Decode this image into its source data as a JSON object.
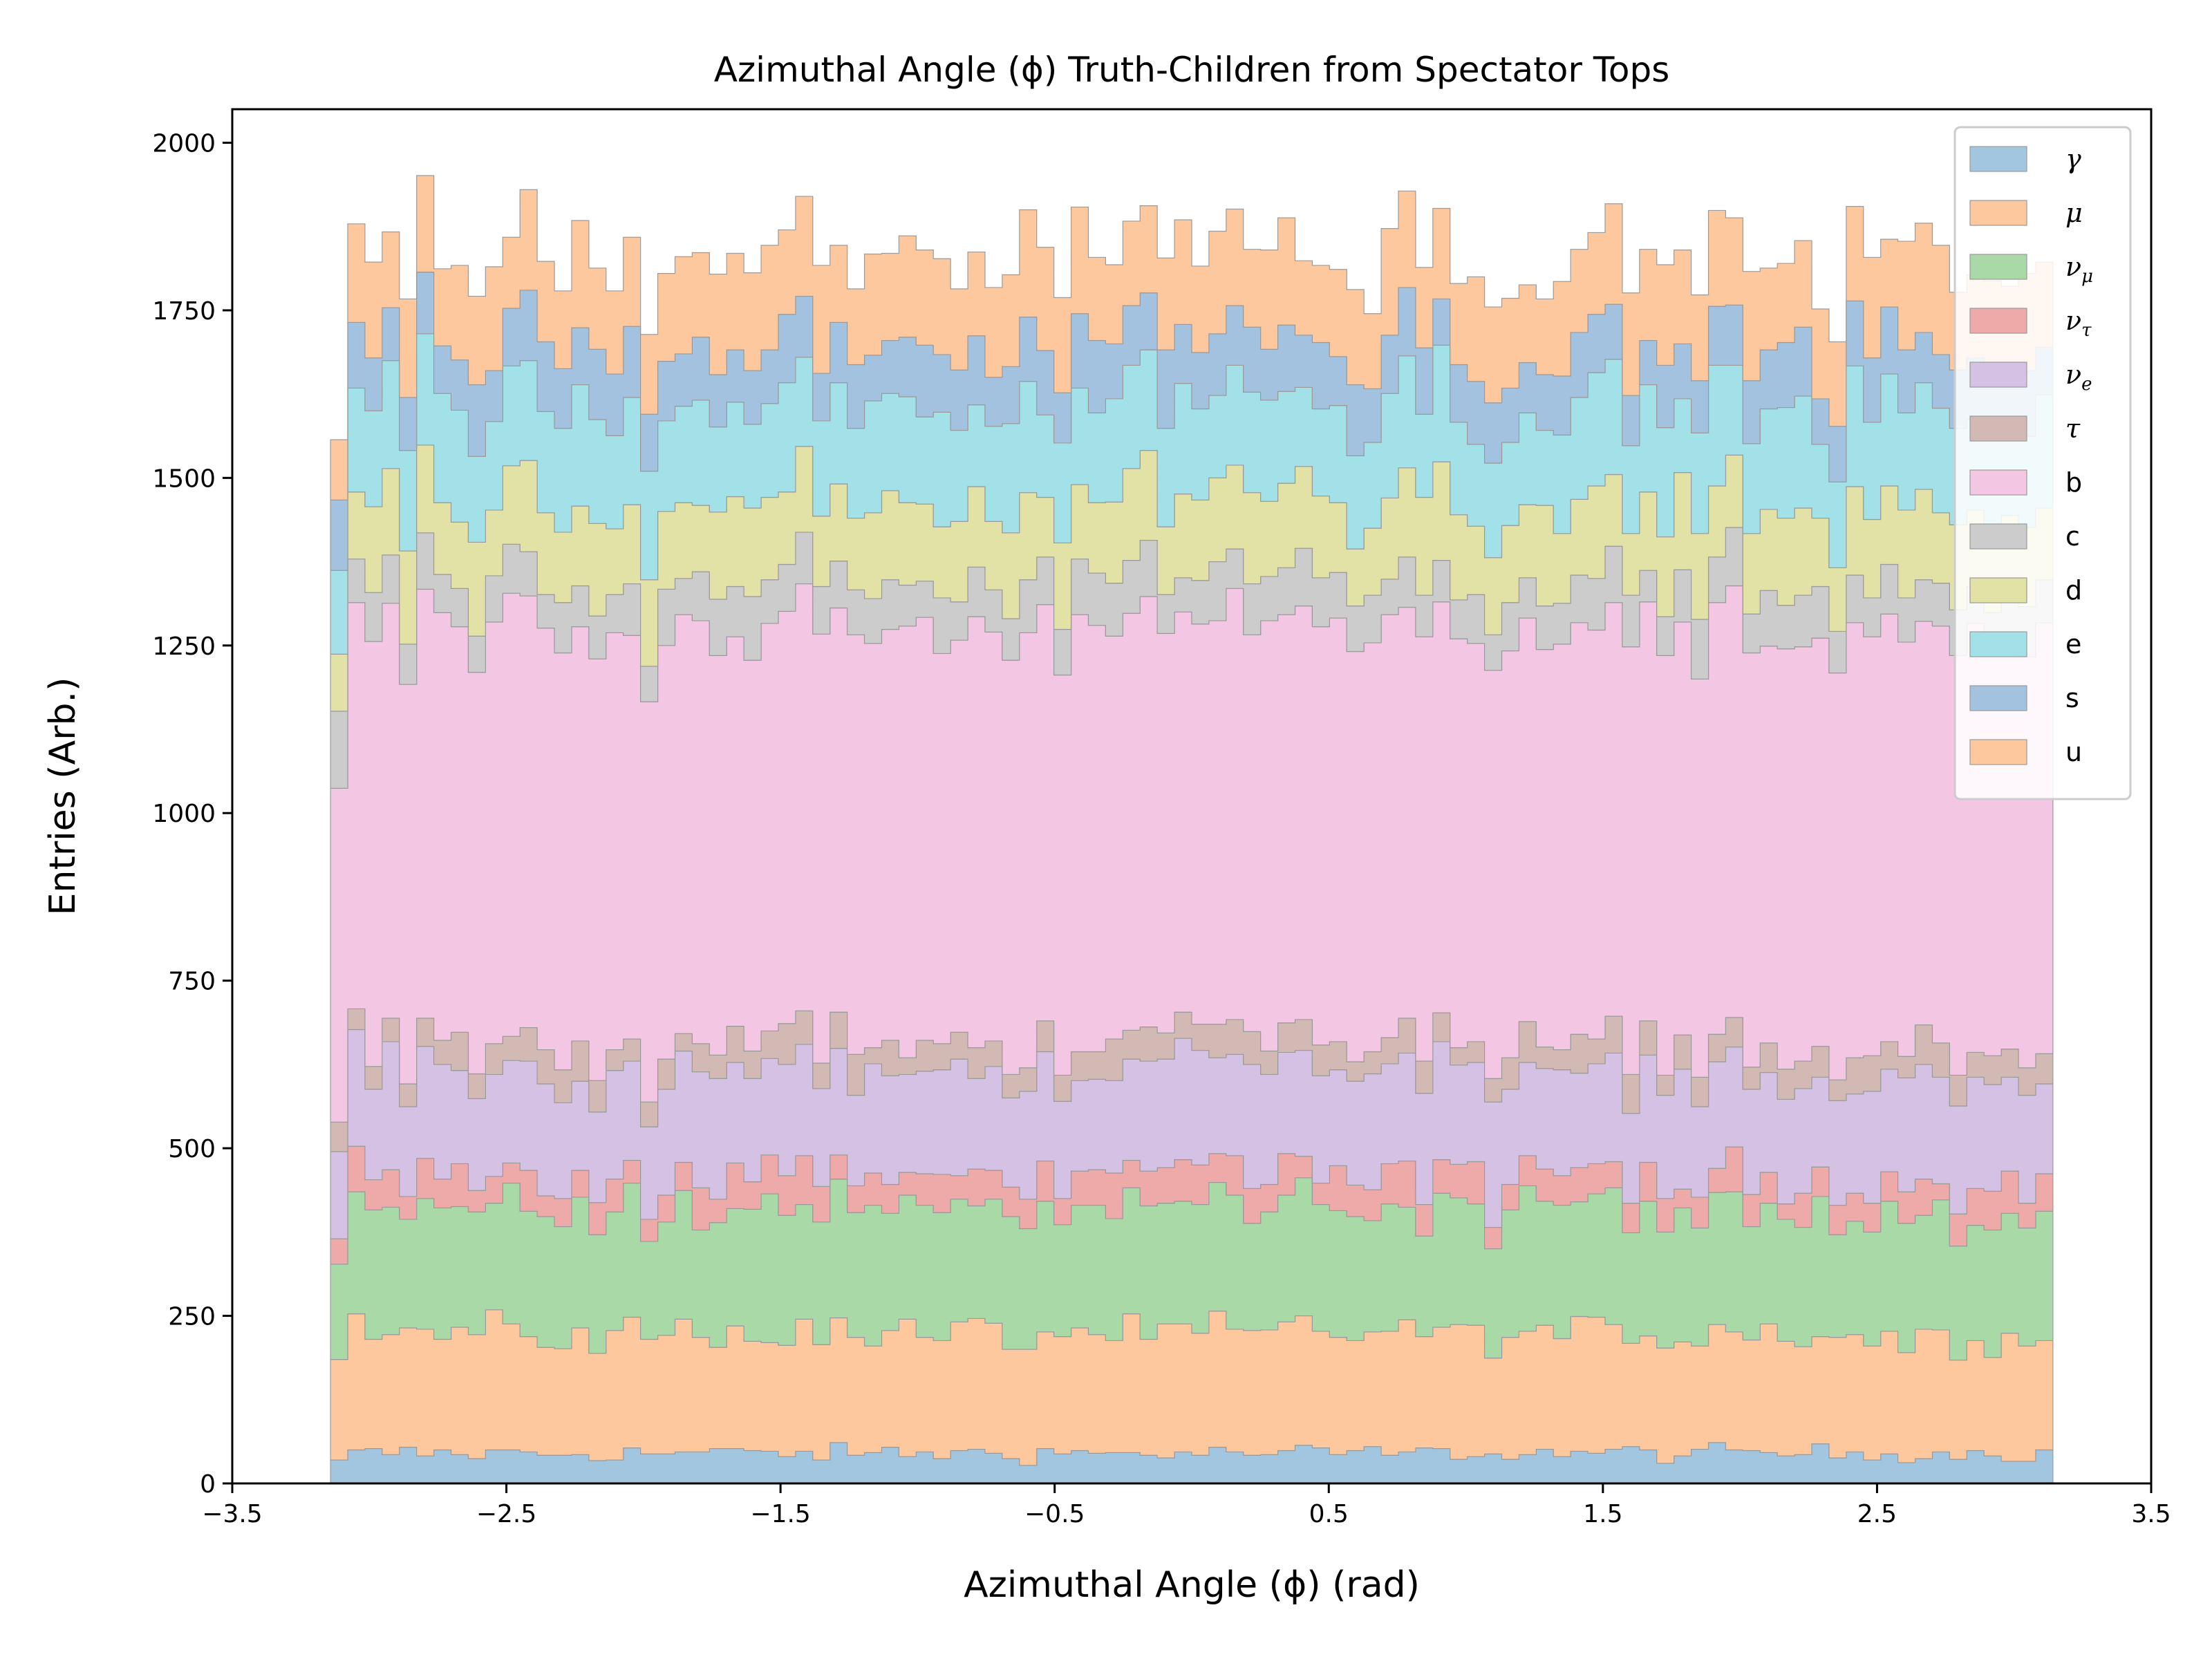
{
  "chart_data": {
    "type": "area",
    "title": "Azimuthal Angle (ϕ) Truth-Children from Spectator Tops",
    "xlabel": "Azimuthal Angle (ϕ) (rad)",
    "ylabel": "Entries (Arb.)",
    "xlim": [
      -3.5,
      3.5
    ],
    "ylim": [
      0,
      2050
    ],
    "xticks": [
      "−3.5",
      "−2.5",
      "−1.5",
      "−0.5",
      "0.5",
      "1.5",
      "2.5",
      "3.5"
    ],
    "xtick_values": [
      -3.5,
      -2.5,
      -1.5,
      -0.5,
      0.5,
      1.5,
      2.5,
      3.5
    ],
    "yticks": [
      "0",
      "250",
      "500",
      "750",
      "1000",
      "1250",
      "1500",
      "1750",
      "2000"
    ],
    "ytick_values": [
      0,
      250,
      500,
      750,
      1000,
      1250,
      1500,
      1750,
      2000
    ],
    "grid": false,
    "legend_position": "top-right",
    "bin_range": [
      -3.1416,
      3.1416
    ],
    "bin_count": 100,
    "stacked": true,
    "series": [
      {
        "name": "γ",
        "label": "γ",
        "color": "#a3c6e0",
        "mean": 45,
        "noise": 7,
        "first": 35
      },
      {
        "name": "μ",
        "label": "μ",
        "color": "#fec89e",
        "mean": 178,
        "noise": 14,
        "first": 150
      },
      {
        "name": "ν_μ",
        "label": "ν",
        "sub": "μ",
        "color": "#aad9a8",
        "mean": 185,
        "noise": 15,
        "first": 142
      },
      {
        "name": "ν_τ",
        "label": "ν",
        "sub": "τ",
        "color": "#eea9a9",
        "mean": 48,
        "noise": 10,
        "first": 38
      },
      {
        "name": "ν_e",
        "label": "ν",
        "sub": "e",
        "color": "#d5c1e4",
        "mean": 155,
        "noise": 14,
        "first": 130
      },
      {
        "name": "τ",
        "label": "τ",
        "color": "#d2b9b4",
        "mean": 42,
        "noise": 9,
        "first": 44
      },
      {
        "name": "b",
        "label": "b",
        "color": "#f3c6e3",
        "mean": 612,
        "noise": 20,
        "first": 498
      },
      {
        "name": "c",
        "label": "c",
        "color": "#cccccc",
        "mean": 70,
        "noise": 10,
        "first": 115
      },
      {
        "name": "d",
        "label": "d",
        "color": "#e2e2a6",
        "mean": 118,
        "noise": 14,
        "first": 85
      },
      {
        "name": "e",
        "label": "e",
        "color": "#a2e1e8",
        "mean": 148,
        "noise": 15,
        "first": 125
      },
      {
        "name": "s",
        "label": "s",
        "color": "#a3c2df",
        "mean": 90,
        "noise": 12,
        "first": 105
      },
      {
        "name": "u",
        "label": "u",
        "color": "#fec89e",
        "mean": 135,
        "noise": 17,
        "first": 90
      }
    ]
  }
}
